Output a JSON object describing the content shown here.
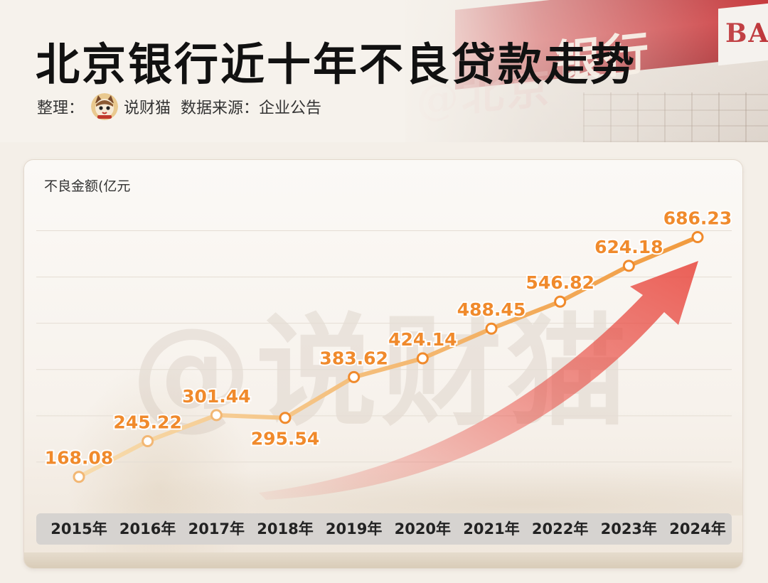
{
  "header": {
    "title": "北京银行近十年不良贷款走势",
    "credit_prefix": "整理：",
    "credit_author": "说财猫",
    "credit_source": "数据来源：企业公告",
    "bank_sign_latin": "BA",
    "bank_sign_cn": "银行"
  },
  "watermark_text": "@说财猫",
  "colors": {
    "accent": "#f08a2c",
    "line_start": "#f7d9a6",
    "line_end": "#f19a3e",
    "arrow": "#e8453c"
  },
  "icons": {
    "avatar": "cat-avatar-icon",
    "trend_arrow": "trend-arrow-icon"
  },
  "chart_data": {
    "type": "line",
    "title": "北京银行近十年不良贷款走势",
    "ylabel": "不良金额(亿元",
    "xlabel": "",
    "categories": [
      "2015年",
      "2016年",
      "2017年",
      "2018年",
      "2019年",
      "2020年",
      "2021年",
      "2022年",
      "2023年",
      "2024年"
    ],
    "values": [
      168.08,
      245.22,
      301.44,
      295.54,
      383.62,
      424.14,
      488.45,
      546.82,
      624.18,
      686.23
    ],
    "value_labels": [
      "168.08",
      "245.22",
      "301.44",
      "295.54",
      "383.62",
      "424.14",
      "488.45",
      "546.82",
      "624.18",
      "686.23"
    ],
    "ylim": [
      100,
      730
    ],
    "grid": true,
    "legend": "none"
  }
}
